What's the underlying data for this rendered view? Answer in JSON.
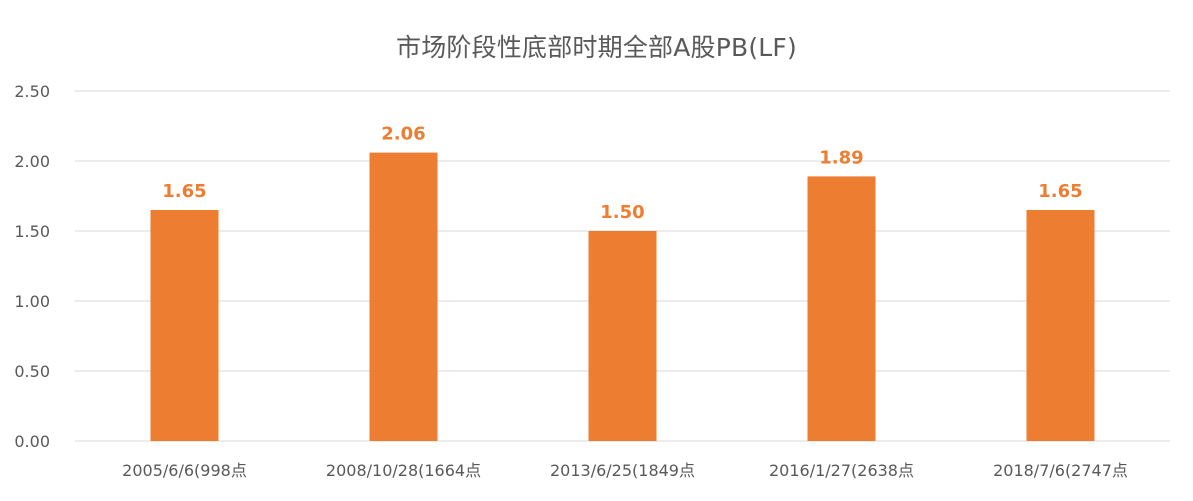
{
  "chart_data": {
    "type": "bar",
    "title": "市场阶段性底部时期全部A股PB(LF)",
    "xlabel": "",
    "ylabel": "",
    "categories": [
      "2005/6/6(998点",
      "2008/10/28(1664点",
      "2013/6/25(1849点",
      "2016/1/27(2638点",
      "2018/7/6(2747点"
    ],
    "values": [
      1.65,
      2.06,
      1.5,
      1.89,
      1.65
    ],
    "data_labels": [
      "1.65",
      "2.06",
      "1.50",
      "1.89",
      "1.65"
    ],
    "ylim": [
      0,
      2.5
    ],
    "yticks": [
      0,
      0.5,
      1.0,
      1.5,
      2.0,
      2.5
    ],
    "ytick_labels": [
      "0.00",
      "0.50",
      "1.00",
      "1.50",
      "2.00",
      "2.50"
    ],
    "grid": true,
    "legend": "none",
    "colors": {
      "bar": "#ED7D31",
      "data_label": "#ED7D31",
      "grid": "#D9D9D9",
      "text": "#595959"
    }
  }
}
